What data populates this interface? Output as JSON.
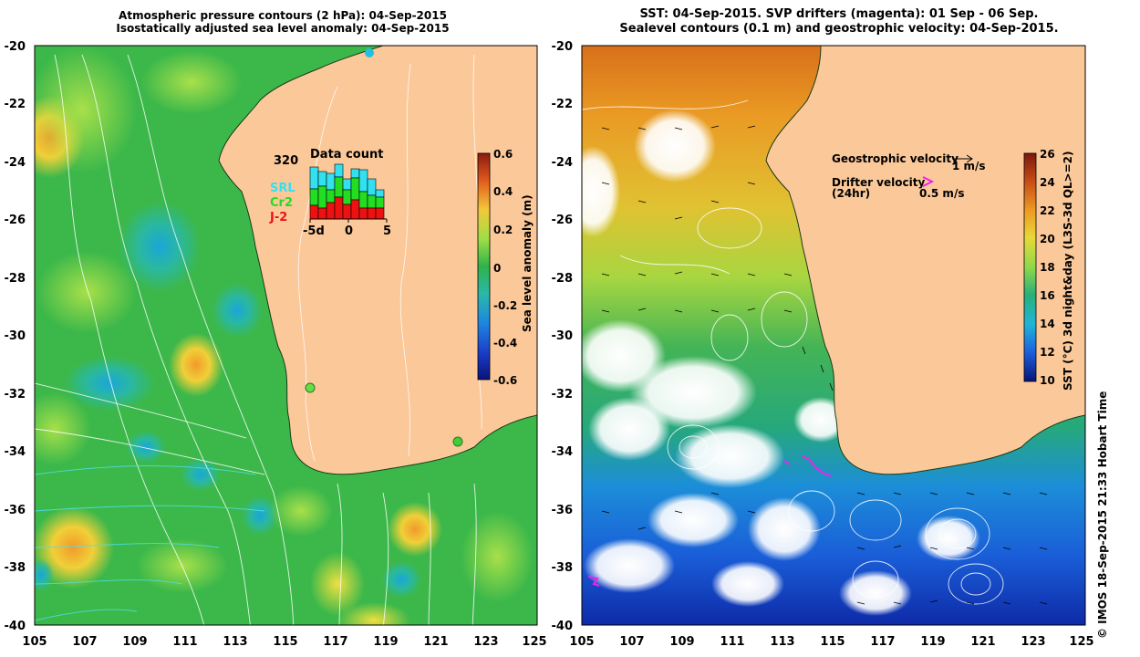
{
  "left_panel": {
    "title_line1": "Atmospheric pressure contours (2 hPa): 04-Sep-2015",
    "title_line2": "Isostatically adjusted sea level anomaly: 04-Sep-2015",
    "colorbar": {
      "label": "Sea level anomaly (m)",
      "ticks": [
        "0.6",
        "0.4",
        "0.2",
        "0",
        "-0.2",
        "-0.4",
        "-0.6"
      ]
    },
    "inset": {
      "title": "Data count",
      "ymax_label": "320",
      "legend": [
        {
          "label": "SRL",
          "color": "#33e0f0"
        },
        {
          "label": "Cr2",
          "color": "#22dd22"
        },
        {
          "label": "J-2",
          "color": "#ee1111"
        }
      ],
      "xticks": [
        "-5d",
        "0",
        "5"
      ]
    }
  },
  "right_panel": {
    "title_line1": "SST: 04-Sep-2015. SVP drifters (magenta): 01 Sep - 06 Sep.",
    "title_line2": "Sealevel contours (0.1 m) and geostrophic velocity: 04-Sep-2015.",
    "legend": {
      "geostrophic_label": "Geostrophic velocity",
      "geostrophic_speed": "1 m/s",
      "drifter_label": "Drifter velocity",
      "drifter_period": "(24hr)",
      "drifter_speed": "0.5 m/s"
    },
    "colorbar": {
      "label": "SST (°C) 3d night&day (L3S-3d QL>=2)",
      "ticks": [
        "26",
        "24",
        "22",
        "20",
        "18",
        "16",
        "14",
        "12",
        "10"
      ]
    }
  },
  "y_ticks": [
    "-20",
    "-22",
    "-24",
    "-26",
    "-28",
    "-30",
    "-32",
    "-34",
    "-36",
    "-38",
    "-40"
  ],
  "x_ticks": [
    "105",
    "107",
    "109",
    "111",
    "113",
    "115",
    "117",
    "119",
    "121",
    "123",
    "125"
  ],
  "footer_stamp": "© IMOS 18-Sep-2015 21:33 Hobart Time",
  "colors": {
    "land": "#fbc89a",
    "ocean_sla": "#3cb84a",
    "sst_warm": "#e08a1a",
    "sst_cool": "#1560d8",
    "drifter": "#ee22ee"
  }
}
